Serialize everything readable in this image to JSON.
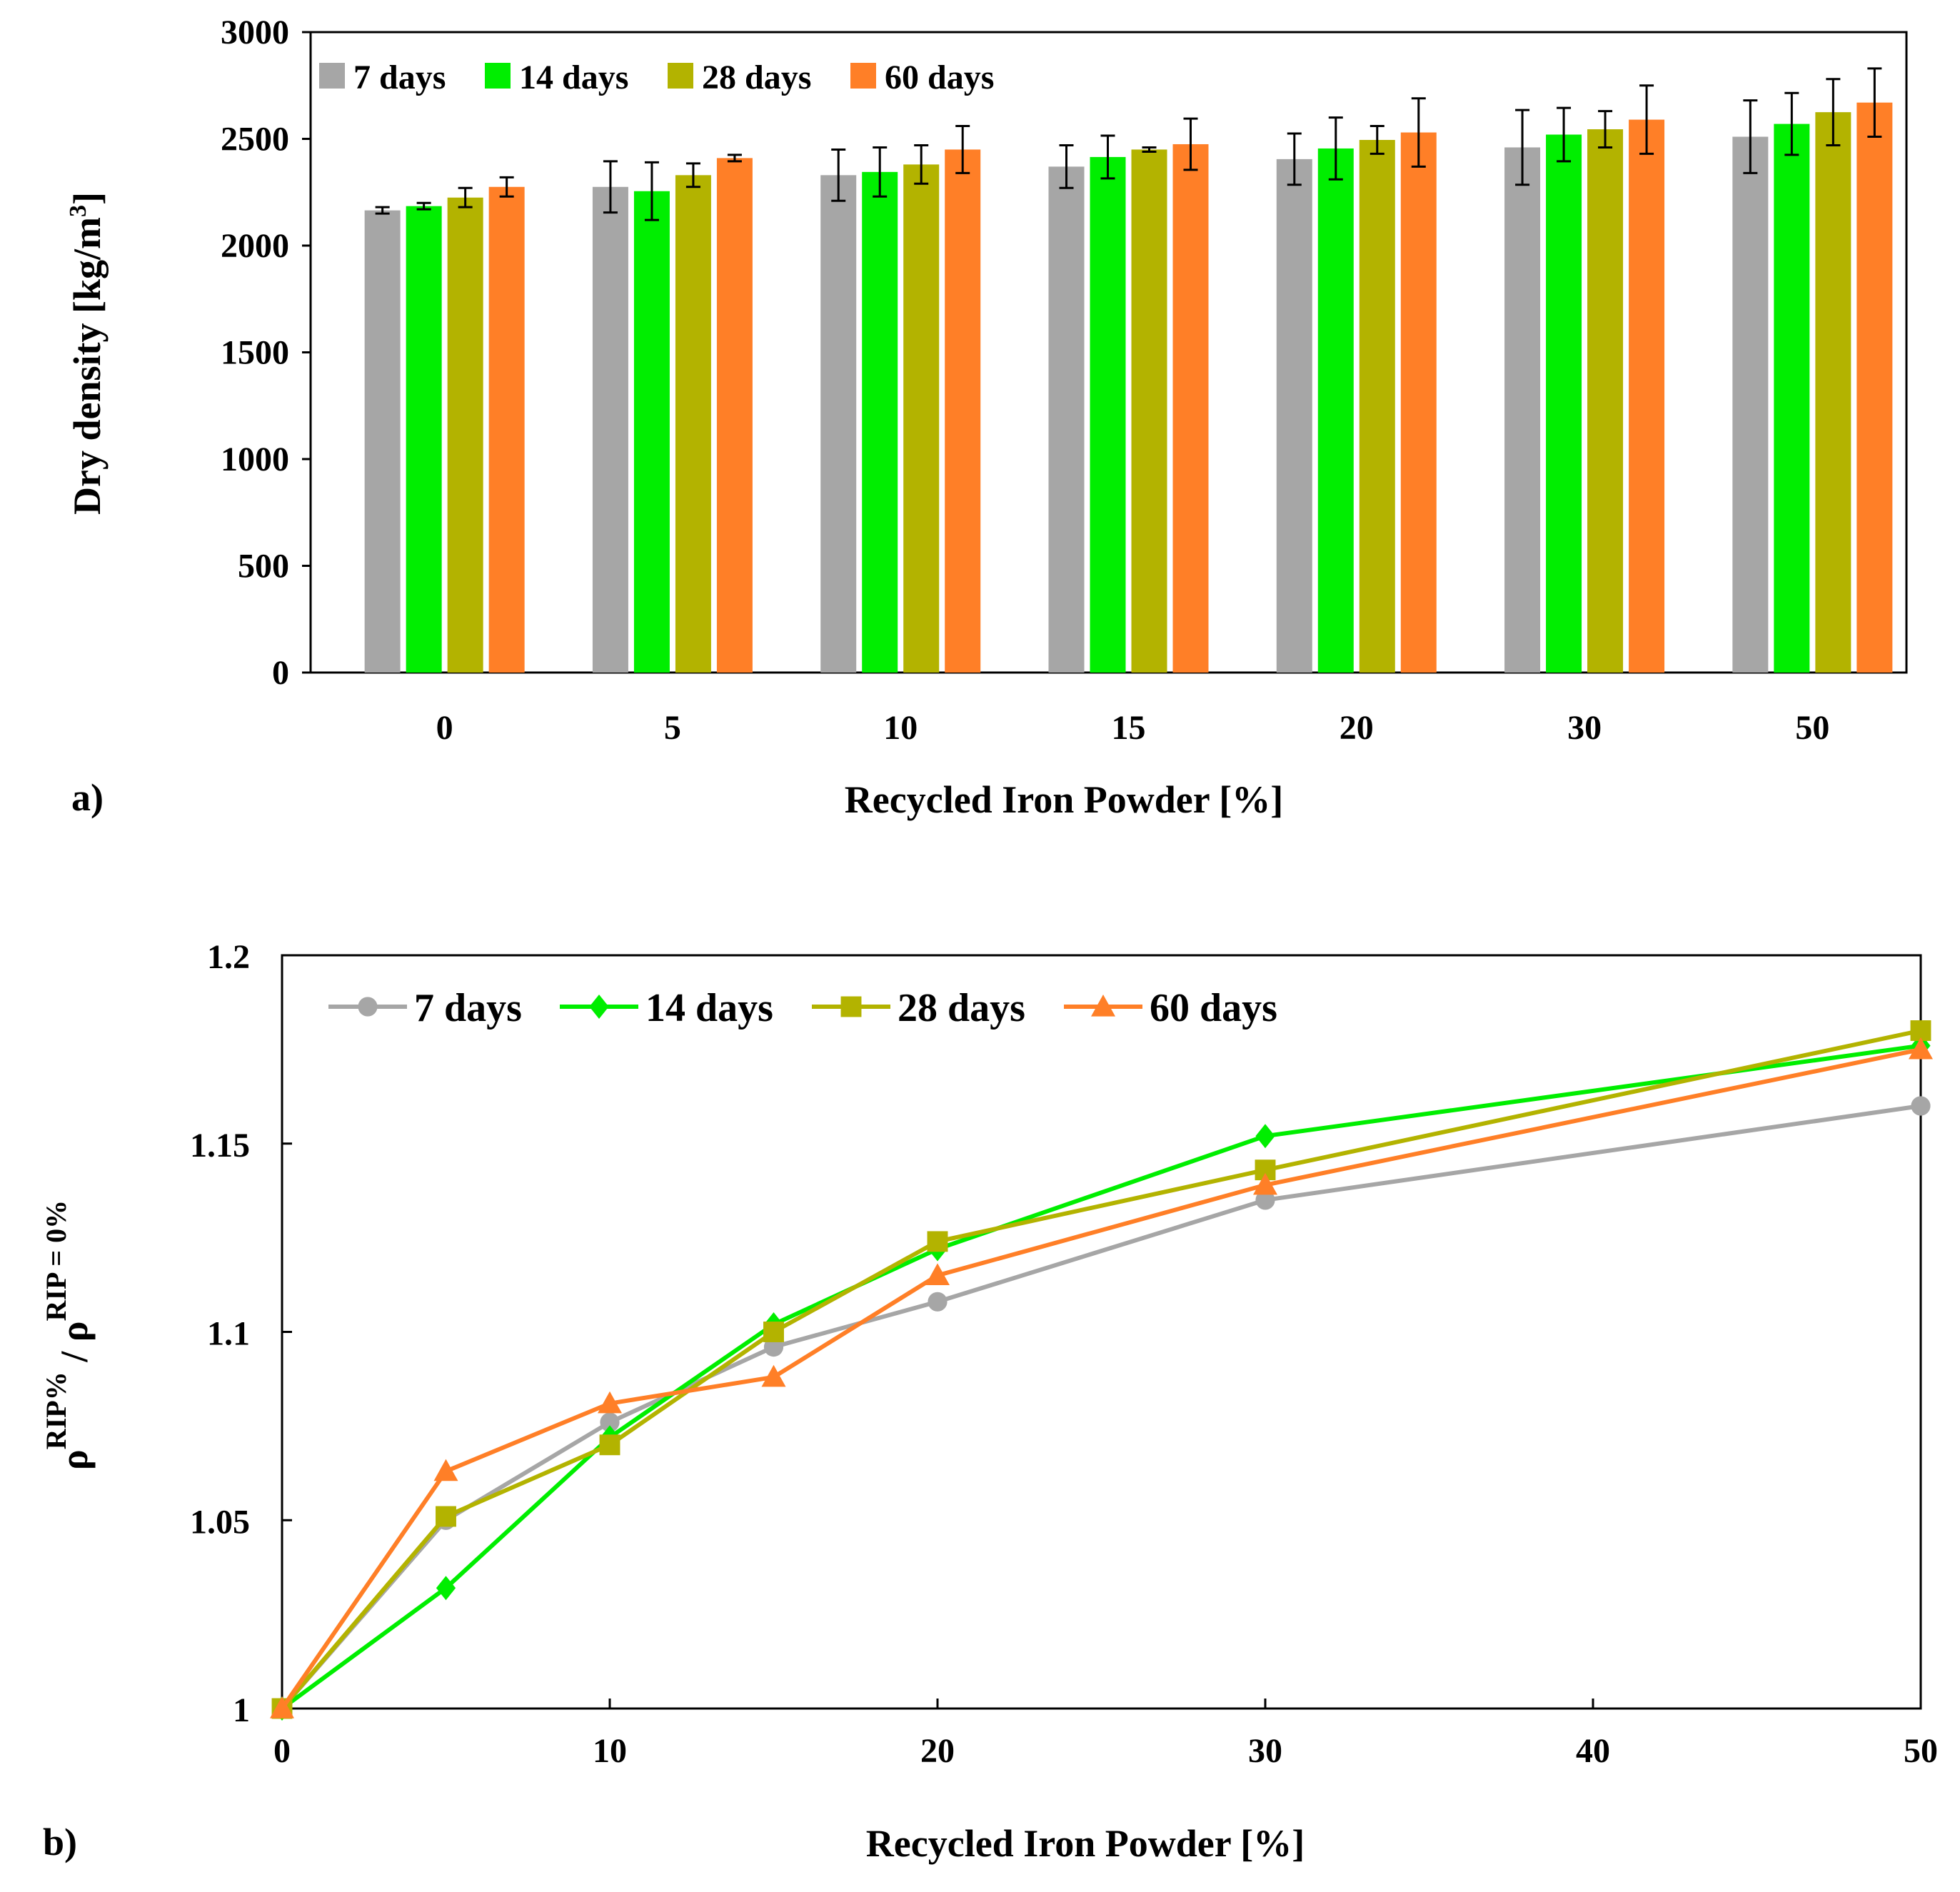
{
  "chart_data": [
    {
      "type": "bar",
      "panel_label": "a)",
      "title": "",
      "xlabel": "Recycled Iron Powder [%]",
      "ylabel": "Dry density [kg/m",
      "ylabel_sup": "3",
      "ylabel_end": "]",
      "ylim": [
        0,
        3000
      ],
      "yticks": [
        "0",
        "500",
        "1000",
        "1500",
        "2000",
        "2500",
        "3000"
      ],
      "categories": [
        "0",
        "5",
        "10",
        "15",
        "20",
        "30",
        "50"
      ],
      "legend_position": "top-left",
      "series": [
        {
          "name": "7 days",
          "color": "#a6a6a6",
          "values": [
            2165,
            2275,
            2330,
            2370,
            2405,
            2460,
            2510
          ],
          "errors": [
            15,
            120,
            120,
            100,
            120,
            175,
            170
          ]
        },
        {
          "name": "14 days",
          "color": "#00ee00",
          "values": [
            2185,
            2255,
            2345,
            2415,
            2455,
            2520,
            2570
          ],
          "errors": [
            15,
            135,
            115,
            100,
            145,
            125,
            145
          ]
        },
        {
          "name": "28 days",
          "color": "#b3b300",
          "values": [
            2225,
            2330,
            2380,
            2450,
            2495,
            2545,
            2625
          ],
          "errors": [
            45,
            55,
            90,
            10,
            65,
            85,
            155
          ]
        },
        {
          "name": "60 days",
          "color": "#ff7f27",
          "values": [
            2275,
            2410,
            2450,
            2475,
            2530,
            2590,
            2670
          ],
          "errors": [
            45,
            15,
            110,
            120,
            160,
            160,
            160
          ]
        }
      ]
    },
    {
      "type": "line",
      "panel_label": "b)",
      "title": "",
      "xlabel": "Recycled Iron Powder [%]",
      "ylabel_parts": {
        "rho1": "ρ",
        "sup1": "RIP%",
        "slash": " / ",
        "rho2": "ρ",
        "sup2": "RIP = 0%"
      },
      "xlim": [
        0,
        50
      ],
      "ylim": [
        1,
        1.2
      ],
      "xticks": [
        "0",
        "10",
        "20",
        "30",
        "40",
        "50"
      ],
      "yticks": [
        "1",
        "1.05",
        "1.1",
        "1.15",
        "1.2"
      ],
      "x": [
        0,
        5,
        10,
        15,
        20,
        30,
        50
      ],
      "legend_position": "top-left",
      "series": [
        {
          "name": "7 days",
          "color": "#a6a6a6",
          "marker": "circle",
          "values": [
            1.0,
            1.05,
            1.076,
            1.096,
            1.108,
            1.135,
            1.16
          ]
        },
        {
          "name": "14 days",
          "color": "#00ee00",
          "marker": "diamond",
          "values": [
            1.0,
            1.032,
            1.072,
            1.102,
            1.122,
            1.152,
            1.176
          ]
        },
        {
          "name": "28 days",
          "color": "#b3b300",
          "marker": "square",
          "values": [
            1.0,
            1.051,
            1.07,
            1.1,
            1.124,
            1.143,
            1.18
          ]
        },
        {
          "name": "60 days",
          "color": "#ff7f27",
          "marker": "triangle",
          "values": [
            1.0,
            1.063,
            1.081,
            1.088,
            1.115,
            1.139,
            1.175
          ]
        }
      ]
    }
  ]
}
